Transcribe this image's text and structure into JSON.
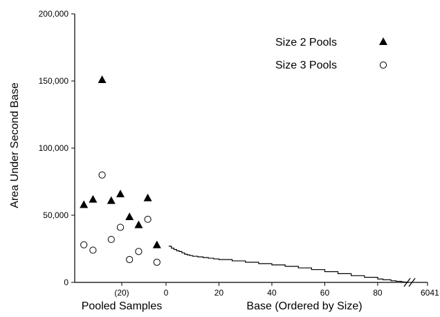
{
  "chart_data": {
    "type": "scatter",
    "title": "",
    "ylabel": "Area Under Second Base",
    "ylim": [
      0,
      200000
    ],
    "y_ticks": [
      0,
      50000,
      100000,
      150000,
      200000
    ],
    "y_tick_labels": [
      "0",
      "50,000",
      "100,000",
      "150,000",
      "200,000"
    ],
    "grid": false,
    "legend_position": "top-right",
    "pooled_panel": {
      "xlabel": "Pooled Samples",
      "tick_label": "(20)",
      "series": [
        {
          "name": "Size 2 Pools",
          "marker": "filled-triangle",
          "points": [
            {
              "x": -27,
              "y": 58000
            },
            {
              "x": -24,
              "y": 62000
            },
            {
              "x": -21,
              "y": 151000
            },
            {
              "x": -18,
              "y": 61000
            },
            {
              "x": -15,
              "y": 66000
            },
            {
              "x": -12,
              "y": 49000
            },
            {
              "x": -9,
              "y": 43000
            },
            {
              "x": -6,
              "y": 63000
            },
            {
              "x": -3,
              "y": 28000
            }
          ]
        },
        {
          "name": "Size 3 Pools",
          "marker": "open-circle",
          "points": [
            {
              "x": -27,
              "y": 28000
            },
            {
              "x": -24,
              "y": 24000
            },
            {
              "x": -21,
              "y": 80000
            },
            {
              "x": -18,
              "y": 32000
            },
            {
              "x": -15,
              "y": 41000
            },
            {
              "x": -12,
              "y": 17000
            },
            {
              "x": -9,
              "y": 23000
            },
            {
              "x": -6,
              "y": 47000
            },
            {
              "x": -3,
              "y": 15000
            }
          ]
        }
      ]
    },
    "base_panel": {
      "xlabel": "Base (Ordered by Size)",
      "xlim": [
        0,
        91
      ],
      "x_ticks": [
        0,
        20,
        40,
        60,
        80
      ],
      "x_tick_labels": [
        "0",
        "20",
        "40",
        "60",
        "80"
      ],
      "axis_break": true,
      "end_label": "6041",
      "series": [
        {
          "marker": "step-line",
          "x": [
            1,
            2,
            3,
            4,
            5,
            6,
            7,
            8,
            9,
            10,
            12,
            14,
            16,
            18,
            20,
            25,
            30,
            35,
            40,
            45,
            50,
            55,
            60,
            65,
            70,
            75,
            80,
            82,
            85,
            87,
            89,
            90,
            91
          ],
          "y": [
            27000,
            25500,
            24500,
            23500,
            23000,
            22000,
            21000,
            20500,
            20000,
            19500,
            19000,
            18500,
            18000,
            17500,
            17000,
            16000,
            15000,
            14000,
            13000,
            12000,
            10800,
            9500,
            8000,
            6500,
            5000,
            3800,
            2500,
            2000,
            1200,
            800,
            400,
            200,
            0
          ]
        }
      ]
    }
  }
}
